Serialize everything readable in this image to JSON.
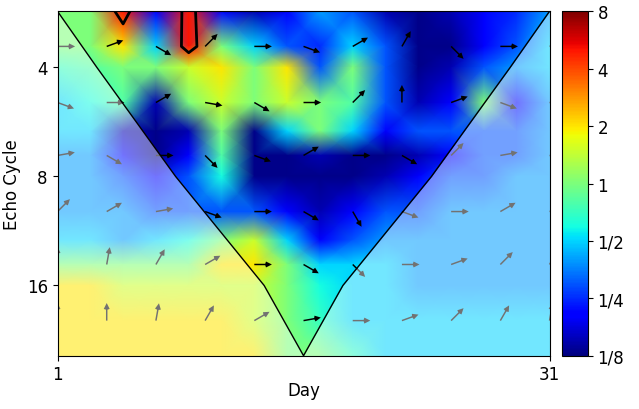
{
  "chart_data": {
    "type": "heatmap",
    "x_label": "Day",
    "y_label": "Echo Cycle",
    "xlim": [
      1,
      31
    ],
    "xticks": [
      1,
      31
    ],
    "ylim": [
      2.8,
      25
    ],
    "yticks": [
      4,
      8,
      16
    ],
    "log": "y",
    "x": [
      1,
      3,
      5,
      7,
      9,
      11,
      13,
      15,
      17,
      19,
      21,
      23,
      25,
      27,
      29,
      31
    ],
    "y": [
      2.8,
      3.5,
      4,
      5,
      6,
      7,
      8,
      10,
      12,
      14,
      16,
      20,
      25
    ],
    "cells": [
      [
        1,
        1,
        5,
        0.2,
        5,
        0.2,
        0.15,
        0.2,
        0.4,
        0.3,
        0.15,
        0.13,
        0.15,
        0.2,
        0.25,
        0.4
      ],
      [
        1,
        1,
        2,
        0.5,
        5,
        1,
        0.5,
        0.3,
        0.25,
        0.5,
        0.3,
        0.13,
        0.13,
        0.2,
        0.3,
        0.5
      ],
      [
        0.7,
        0.8,
        1,
        1,
        1.5,
        2,
        1,
        2,
        0.3,
        1,
        0.3,
        0.13,
        0.15,
        0.3,
        0.4,
        0.5
      ],
      [
        0.5,
        0.6,
        0.8,
        0.15,
        1,
        1.5,
        1,
        1.5,
        1,
        0.8,
        0.3,
        0.15,
        0.2,
        1,
        0.2,
        0.4
      ],
      [
        0.5,
        0.5,
        0.15,
        0.13,
        0.15,
        1,
        0.13,
        0.5,
        1,
        0.5,
        0.2,
        0.3,
        0.3,
        0.3,
        0.3,
        0.4
      ],
      [
        0.4,
        0.4,
        0.2,
        0.13,
        0.2,
        0.8,
        0.13,
        0.13,
        0.15,
        0.13,
        0.13,
        0.15,
        0.2,
        0.3,
        0.3,
        0.4
      ],
      [
        0.4,
        0.4,
        0.3,
        0.2,
        0.3,
        0.6,
        0.13,
        0.13,
        0.13,
        0.13,
        0.15,
        0.2,
        0.3,
        0.3,
        0.4,
        0.4
      ],
      [
        0.4,
        0.4,
        0.4,
        0.3,
        0.3,
        0.3,
        0.3,
        0.2,
        0.15,
        0.2,
        0.3,
        0.3,
        0.4,
        0.4,
        0.4,
        0.4
      ],
      [
        0.5,
        0.5,
        0.4,
        0.5,
        0.6,
        1,
        1.5,
        0.5,
        0.2,
        0.3,
        0.4,
        0.4,
        0.4,
        0.4,
        0.4,
        0.4
      ],
      [
        1,
        1,
        1,
        1,
        1,
        2,
        2,
        1,
        0.5,
        0.5,
        0.5,
        0.4,
        0.4,
        0.4,
        0.4,
        0.4
      ],
      [
        2,
        2,
        1.5,
        1.5,
        1.5,
        1.5,
        1.5,
        1,
        0.6,
        0.5,
        0.5,
        0.4,
        0.4,
        0.4,
        0.4,
        0.4
      ],
      [
        2,
        2,
        2,
        2,
        2,
        2,
        1.5,
        1,
        0.7,
        0.5,
        0.5,
        0.5,
        0.5,
        0.5,
        0.5,
        0.5
      ],
      [
        2,
        2,
        2,
        2,
        2,
        2,
        2,
        1,
        1,
        0.7,
        0.5,
        0.5,
        0.5,
        0.5,
        0.5,
        0.5
      ]
    ],
    "colorbar_range": [
      0.125,
      8
    ],
    "colorbar_ticks": [
      {
        "value": 0.125,
        "label": "1/8"
      },
      {
        "value": 0.25,
        "label": "1/4"
      },
      {
        "value": 0.5,
        "label": "1/2"
      },
      1,
      2,
      4,
      8
    ],
    "significance_level": 4,
    "cone_of_influence": {
      "x": [
        1,
        3.4,
        8.2,
        13.6,
        16,
        18.4,
        23.8,
        28.6,
        31
      ],
      "y": [
        2.8,
        4,
        8,
        16,
        25,
        16,
        8,
        4,
        2.8
      ]
    },
    "phase": {
      "x": [
        1,
        4,
        7,
        10,
        13,
        16,
        19,
        22,
        25,
        28,
        31
      ],
      "y": [
        3.5,
        5,
        7,
        10,
        14,
        20
      ],
      "degrees": [
        [
          0,
          20,
          -30,
          45,
          0,
          -20,
          30,
          60,
          -45,
          0,
          20
        ],
        [
          -20,
          0,
          30,
          -10,
          -30,
          0,
          45,
          90,
          20,
          -20,
          0
        ],
        [
          10,
          -30,
          0,
          -45,
          -20,
          30,
          0,
          -30,
          45,
          10,
          -10
        ],
        [
          45,
          30,
          10,
          -20,
          0,
          -30,
          -60,
          -20,
          0,
          30,
          20
        ],
        [
          90,
          80,
          60,
          30,
          0,
          -30,
          -45,
          0,
          20,
          45,
          60
        ],
        [
          90,
          90,
          80,
          60,
          30,
          10,
          0,
          20,
          45,
          60,
          80
        ]
      ]
    }
  }
}
